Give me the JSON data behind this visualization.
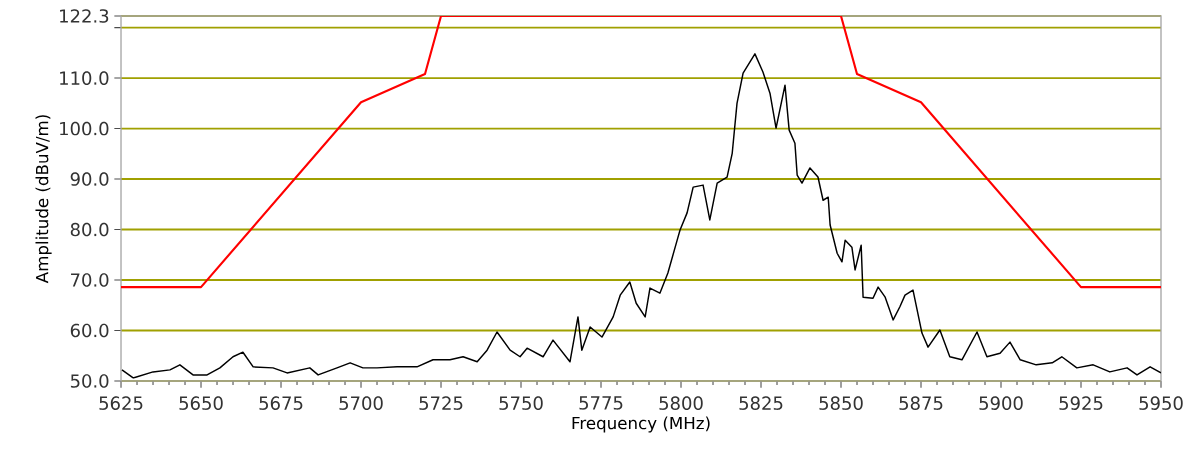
{
  "chart_data": {
    "type": "line",
    "xlabel": "Frequency (MHz)",
    "ylabel": "Amplitude (dBuV/m)",
    "xlim": [
      5625,
      5950
    ],
    "ylim": [
      50,
      122.3
    ],
    "xticks": [
      5625,
      5650,
      5675,
      5700,
      5725,
      5750,
      5775,
      5800,
      5825,
      5850,
      5875,
      5900,
      5925,
      5950
    ],
    "yticks": [
      {
        "value": 50,
        "label": "50.0"
      },
      {
        "value": 60,
        "label": "60.0"
      },
      {
        "value": 70,
        "label": "70.0"
      },
      {
        "value": 80,
        "label": "80.0"
      },
      {
        "value": 90,
        "label": "90.0"
      },
      {
        "value": 100,
        "label": "100.0"
      },
      {
        "value": 110,
        "label": "110.0"
      },
      {
        "value": 120,
        "label": null
      },
      122.3
    ],
    "grid": "y",
    "legend": false,
    "marker": "none",
    "line_style": "solid",
    "series": [
      {
        "color": "#ff0000",
        "x": [
          5625,
          5650,
          5700,
          5720,
          5725,
          5850,
          5855,
          5875,
          5925,
          5950
        ],
        "values": [
          68.6,
          68.6,
          105.2,
          110.8,
          122.3,
          122.3,
          110.8,
          105.2,
          68.6,
          68.6
        ]
      },
      {
        "color": "#000000",
        "x": [
          5625.3,
          5628.8,
          5635,
          5640.3,
          5643.4,
          5647.5,
          5651.9,
          5655.9,
          5660,
          5663.1,
          5666.3,
          5672.5,
          5676.9,
          5684,
          5686.6,
          5692.5,
          5696.6,
          5700.6,
          5705,
          5711.3,
          5717.5,
          5722.5,
          5727.8,
          5731.9,
          5736.3,
          5739.4,
          5742.5,
          5746.6,
          5749.7,
          5751.9,
          5756.9,
          5760,
          5765.3,
          5767.8,
          5769,
          5771.6,
          5775.3,
          5778.8,
          5781,
          5784,
          5786,
          5788.8,
          5790.3,
          5793.4,
          5795.9,
          5798.8,
          5799.7,
          5801.9,
          5803.8,
          5806.9,
          5809,
          5811.3,
          5814.4,
          5816,
          5817.5,
          5819.4,
          5823.1,
          5825.6,
          5827.8,
          5829.7,
          5832.5,
          5833.8,
          5835.6,
          5836.3,
          5837.8,
          5840.3,
          5842.8,
          5844.4,
          5846,
          5846.6,
          5848.8,
          5850.3,
          5851.3,
          5853.4,
          5854.4,
          5856.3,
          5856.9,
          5860,
          5861.6,
          5863.8,
          5866.3,
          5868.4,
          5870,
          5872.5,
          5875.3,
          5877.2,
          5880.9,
          5884,
          5887.8,
          5892.5,
          5895.6,
          5899.7,
          5902.8,
          5906,
          5911,
          5916,
          5919,
          5923.7,
          5928.8,
          5934,
          5939.4,
          5942.5,
          5946.6,
          5950
        ],
        "values": [
          52.2,
          50.6,
          51.8,
          52.2,
          53.2,
          51.2,
          51.2,
          52.6,
          54.8,
          55.7,
          52.8,
          52.6,
          51.6,
          52.6,
          51.2,
          52.6,
          53.6,
          52.6,
          52.6,
          52.8,
          52.8,
          54.2,
          54.2,
          54.8,
          53.8,
          56.1,
          59.7,
          56.1,
          54.8,
          56.5,
          54.8,
          58.1,
          53.8,
          62.7,
          56.1,
          60.7,
          58.7,
          62.7,
          67,
          69.6,
          65.4,
          62.7,
          68.4,
          67.4,
          71.4,
          77.9,
          79.9,
          83.3,
          88.4,
          88.8,
          81.9,
          89.2,
          90.4,
          95.1,
          105,
          111,
          114.8,
          111.2,
          107,
          100.1,
          108.6,
          99.7,
          97.1,
          90.8,
          89.2,
          92.2,
          90.4,
          85.8,
          86.4,
          80.9,
          75.3,
          73.6,
          77.9,
          76.5,
          72,
          76.9,
          66.6,
          66.4,
          68.6,
          66.6,
          62.1,
          64.7,
          67,
          68,
          59.5,
          56.7,
          60.1,
          54.8,
          54.2,
          59.7,
          54.8,
          55.5,
          57.7,
          54.2,
          53.2,
          53.6,
          54.8,
          52.6,
          53.2,
          51.8,
          52.6,
          51.2,
          52.8,
          51.6
        ]
      }
    ]
  }
}
